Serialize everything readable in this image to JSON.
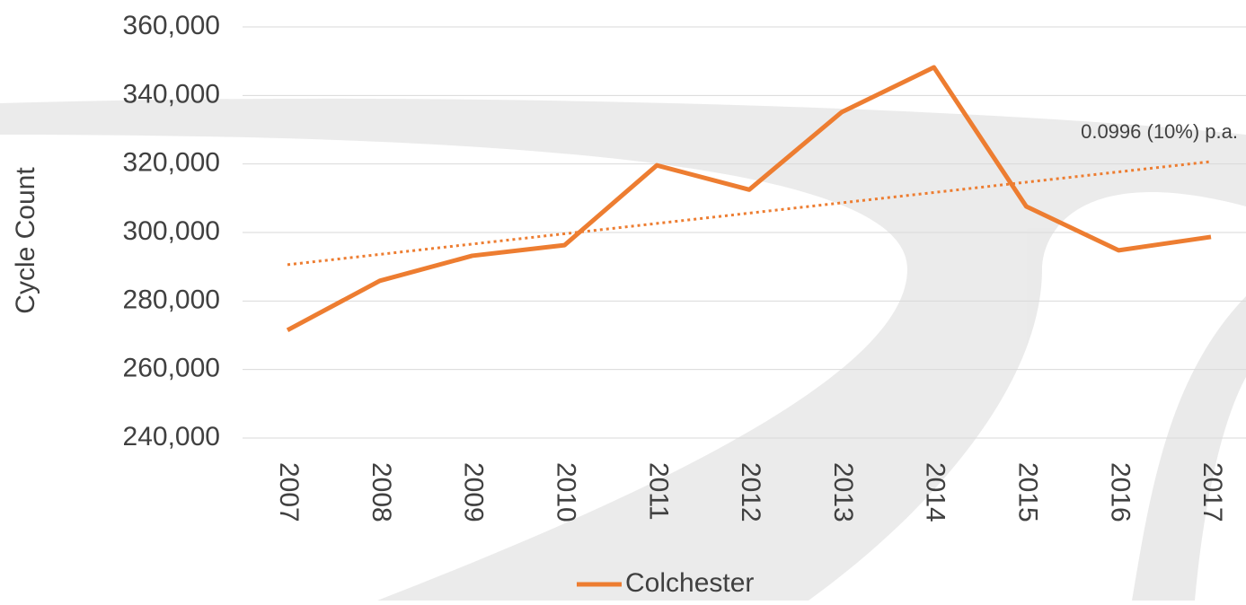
{
  "chart_data": {
    "type": "line",
    "y_label": "Cycle Count",
    "categories": [
      "2007",
      "2008",
      "2009",
      "2010",
      "2011",
      "2012",
      "2013",
      "2014",
      "2015",
      "2016",
      "2017"
    ],
    "series": [
      {
        "name": "Colchester",
        "color": "#ed7d31",
        "values": [
          271500,
          285900,
          293200,
          296300,
          319600,
          312500,
          335100,
          348200,
          307600,
          294800,
          298700
        ]
      }
    ],
    "trendline": {
      "values": [
        290600,
        320700
      ],
      "color": "#ed7d31",
      "label": "0.0996 (10%) p.a."
    },
    "ylim": [
      240000,
      360000
    ],
    "yticks": [
      {
        "value": 240000,
        "label": "240,000"
      },
      {
        "value": 260000,
        "label": "260,000"
      },
      {
        "value": 280000,
        "label": "280,000"
      },
      {
        "value": 300000,
        "label": "300,000"
      },
      {
        "value": 320000,
        "label": "320,000"
      },
      {
        "value": 340000,
        "label": "340,000"
      },
      {
        "value": 360000,
        "label": "360,000"
      }
    ],
    "grid": true,
    "legend": "bottom"
  }
}
